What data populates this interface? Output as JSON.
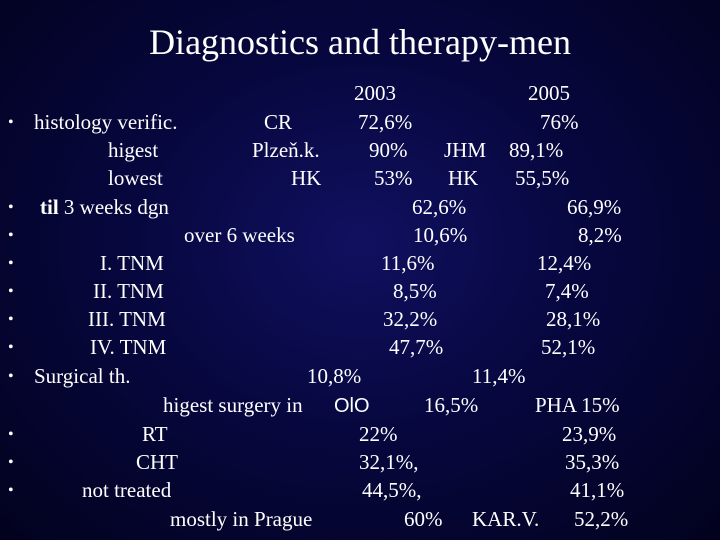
{
  "slide": {
    "title": "Diagnostics and therapy-men",
    "header": {
      "col1": "2003",
      "col2": "2005"
    },
    "bullet_char": "•",
    "histology": {
      "label": "histology verific.",
      "cr": "CR",
      "cr_2003": "72,6%",
      "cr_2005": "76%",
      "highest_label": "higest",
      "highest_region": "Plzeň.k.",
      "highest_2003": "90%",
      "highest_region_2005": "JHM",
      "highest_2005": "89,1%",
      "lowest_label": "lowest",
      "lowest_region": "HK",
      "lowest_2003": "53%",
      "lowest_region_2005": "HK",
      "lowest_2005": "55,5%"
    },
    "til3": {
      "label_bold": "til",
      "label_rest": "3 weeks dgn",
      "v2003": "62,6%",
      "v2005": "66,9%"
    },
    "over6": {
      "label": "over  6 weeks",
      "v2003": "10,6%",
      "v2005": "8,2%"
    },
    "tnm": [
      {
        "label": "I.  TNM",
        "v2003": "11,6%",
        "v2005": "12,4%"
      },
      {
        "label": "II.  TNM",
        "v2003": "8,5%",
        "v2005": "7,4%"
      },
      {
        "label": "III. TNM",
        "v2003": "32,2%",
        "v2005": "28,1%"
      },
      {
        "label": "IV. TNM",
        "v2003": "47,7%",
        "v2005": "52,1%"
      }
    ],
    "surgical": {
      "label": "Surgical th.",
      "v2003": "10,8%",
      "v2005": "11,4%",
      "highest_label": "higest surgery in",
      "highest_region": "OlO",
      "highest_value": "16,5%",
      "highest_2005": "PHA  15%"
    },
    "rt": {
      "label": "RT",
      "v2003": "22%",
      "v2005": "23,9%"
    },
    "cht": {
      "label": "CHT",
      "v2003": "32,1%,",
      "v2005": "35,3%"
    },
    "not_treated": {
      "label": "not treated",
      "v2003": "44,5%,",
      "v2005": "41,1%",
      "mostly_label": "mostly in Prague",
      "mostly_value": "60%",
      "kar_label": "KAR.V.",
      "kar_value": "52,2%"
    }
  }
}
